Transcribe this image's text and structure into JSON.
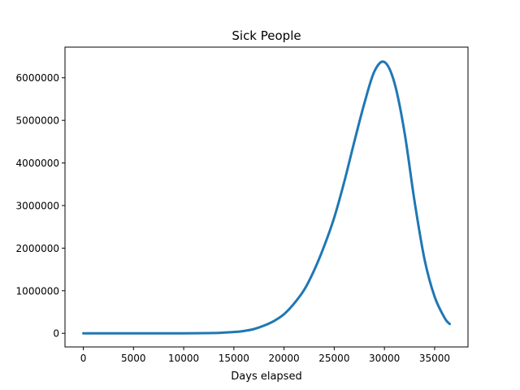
{
  "chart_data": {
    "type": "line",
    "title": "Sick People",
    "xlabel": "Days elapsed",
    "ylabel": "",
    "xlim": [
      -1825,
      38325
    ],
    "ylim": [
      -320000,
      6720000
    ],
    "xticks": [
      0,
      5000,
      10000,
      15000,
      20000,
      25000,
      30000,
      35000
    ],
    "yticks": [
      0,
      1000000,
      2000000,
      3000000,
      4000000,
      5000000,
      6000000
    ],
    "xtick_labels": [
      "0",
      "5000",
      "10000",
      "15000",
      "20000",
      "25000",
      "30000",
      "35000"
    ],
    "ytick_labels": [
      "0",
      "1000000",
      "2000000",
      "3000000",
      "4000000",
      "5000000",
      "6000000"
    ],
    "grid": false,
    "series": [
      {
        "color": "#1f77b4",
        "x": [
          0,
          5000,
          10000,
          12500,
          13500,
          15000,
          16000,
          17000,
          18000,
          19000,
          20000,
          21000,
          22000,
          23000,
          24000,
          25000,
          26000,
          27000,
          28000,
          29000,
          30000,
          31000,
          32000,
          33000,
          34000,
          35000,
          36000,
          36500
        ],
        "values": [
          0,
          0,
          0,
          5000,
          10000,
          30000,
          55000,
          100000,
          180000,
          290000,
          450000,
          700000,
          1020000,
          1480000,
          2050000,
          2720000,
          3560000,
          4500000,
          5400000,
          6150000,
          6370000,
          5880000,
          4720000,
          3100000,
          1730000,
          860000,
          360000,
          220000
        ]
      }
    ]
  }
}
